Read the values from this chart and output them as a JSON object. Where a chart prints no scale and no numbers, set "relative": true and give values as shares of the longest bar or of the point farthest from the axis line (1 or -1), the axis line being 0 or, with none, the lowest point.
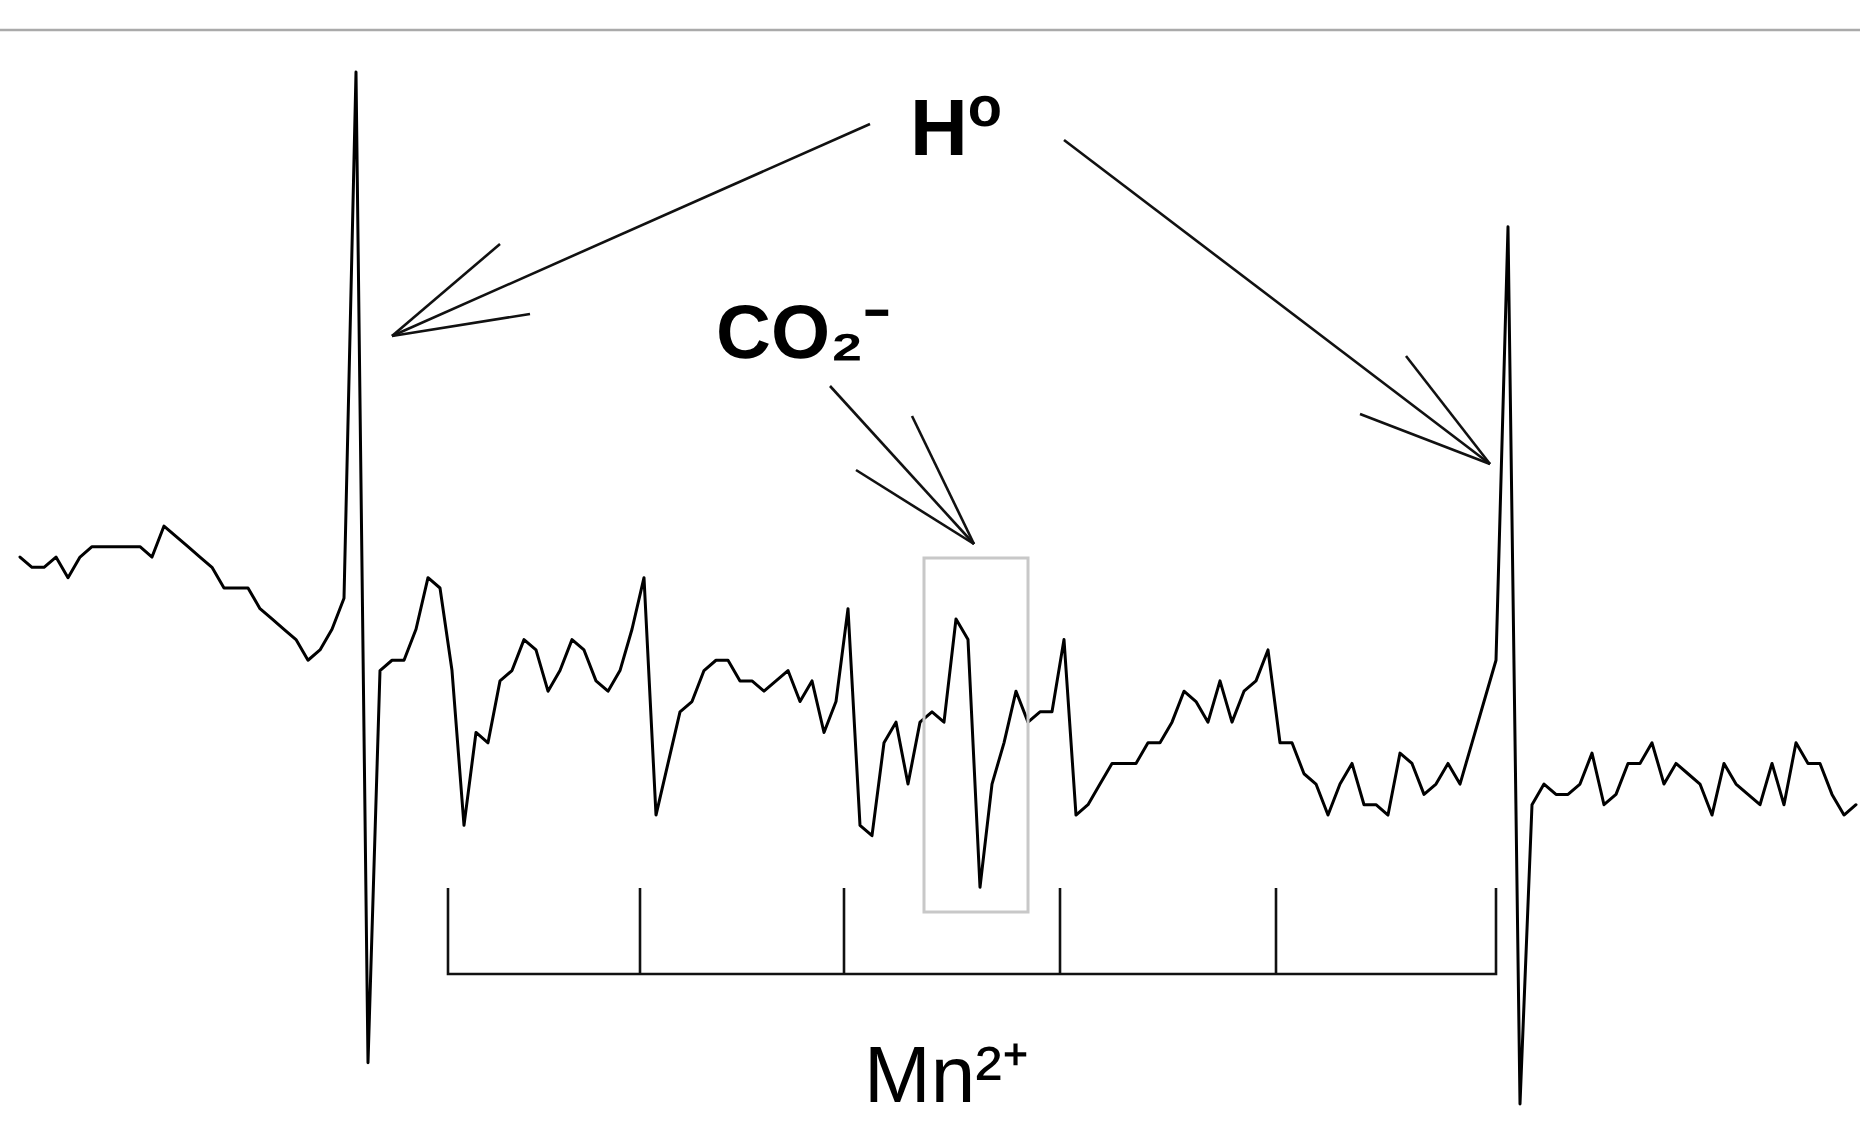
{
  "chart_data": {
    "type": "line",
    "relative": true,
    "categories": [
      null,
      null,
      null,
      null,
      null,
      null,
      null,
      null,
      null,
      null,
      null,
      null,
      null,
      null,
      null,
      null,
      null,
      null,
      null,
      null,
      null,
      null,
      null,
      null,
      null,
      null,
      null,
      null,
      null,
      null,
      null,
      null,
      null,
      null,
      null,
      null,
      null,
      null,
      null,
      null,
      null,
      null,
      null,
      null,
      null,
      null,
      null,
      null,
      null,
      null,
      null,
      null,
      null,
      null,
      null,
      null,
      null,
      null,
      null,
      null,
      null,
      null,
      null,
      null,
      null,
      null,
      null,
      null,
      null,
      null,
      null,
      null,
      null,
      null,
      null,
      null,
      null,
      null,
      null,
      null,
      null,
      null,
      null,
      null,
      null,
      null,
      null,
      null,
      null,
      null,
      null,
      null,
      null,
      null,
      null,
      null,
      null,
      null,
      null,
      null,
      null,
      null,
      null,
      null,
      null,
      null,
      null,
      null,
      null,
      null,
      null,
      null,
      null,
      null,
      null,
      null,
      null,
      null,
      null,
      null,
      null,
      null,
      null,
      null,
      null,
      null,
      null,
      null,
      null,
      null,
      null,
      null,
      null,
      null,
      null,
      null,
      null,
      null,
      null,
      null,
      null,
      null,
      null,
      null,
      null,
      null,
      null,
      null,
      null,
      null,
      null,
      null,
      null,
      null
    ],
    "series": [
      {
        "color": "#000000",
        "values": [
          0.53,
          0.52,
          0.52,
          0.53,
          0.51,
          0.53,
          0.54,
          0.54,
          0.54,
          0.54,
          0.54,
          0.53,
          0.56,
          0.55,
          0.54,
          0.53,
          0.52,
          0.5,
          0.5,
          0.5,
          0.48,
          0.47,
          0.46,
          0.45,
          0.43,
          0.44,
          0.46,
          0.49,
          1,
          0.04,
          0.42,
          0.43,
          0.43,
          0.46,
          0.51,
          0.5,
          0.42,
          0.27,
          0.36,
          0.35,
          0.41,
          0.42,
          0.45,
          0.44,
          0.4,
          0.42,
          0.45,
          0.44,
          0.41,
          0.4,
          0.42,
          0.46,
          0.51,
          0.28,
          0.33,
          0.38,
          0.39,
          0.42,
          0.43,
          0.43,
          0.41,
          0.41,
          0.4,
          0.41,
          0.42,
          0.39,
          0.41,
          0.36,
          0.39,
          0.48,
          0.27,
          0.26,
          0.35,
          0.37,
          0.31,
          0.37,
          0.38,
          0.37,
          0.47,
          0.45,
          0.21,
          0.31,
          0.35,
          0.4,
          0.37,
          0.38,
          0.38,
          0.45,
          0.28,
          0.29,
          0.31,
          0.33,
          0.33,
          0.33,
          0.35,
          0.35,
          0.37,
          0.4,
          0.39,
          0.37,
          0.41,
          0.37,
          0.4,
          0.41,
          0.44,
          0.35,
          0.35,
          0.32,
          0.31,
          0.28,
          0.31,
          0.33,
          0.29,
          0.29,
          0.28,
          0.34,
          0.33,
          0.3,
          0.31,
          0.33,
          0.31,
          0.35,
          0.39,
          0.43,
          0.85,
          0,
          0.29,
          0.31,
          0.3,
          0.3,
          0.31,
          0.34,
          0.29,
          0.3,
          0.33,
          0.33,
          0.35,
          0.31,
          0.33,
          0.32,
          0.31,
          0.28,
          0.33,
          0.31,
          0.3,
          0.29,
          0.33,
          0.29,
          0.35,
          0.33,
          0.33,
          0.3,
          0.28,
          0.29
        ]
      }
    ],
    "annotations": [
      "H$^{o}$",
      "CO₂⁻",
      "Mn²⁺"
    ]
  }
}
